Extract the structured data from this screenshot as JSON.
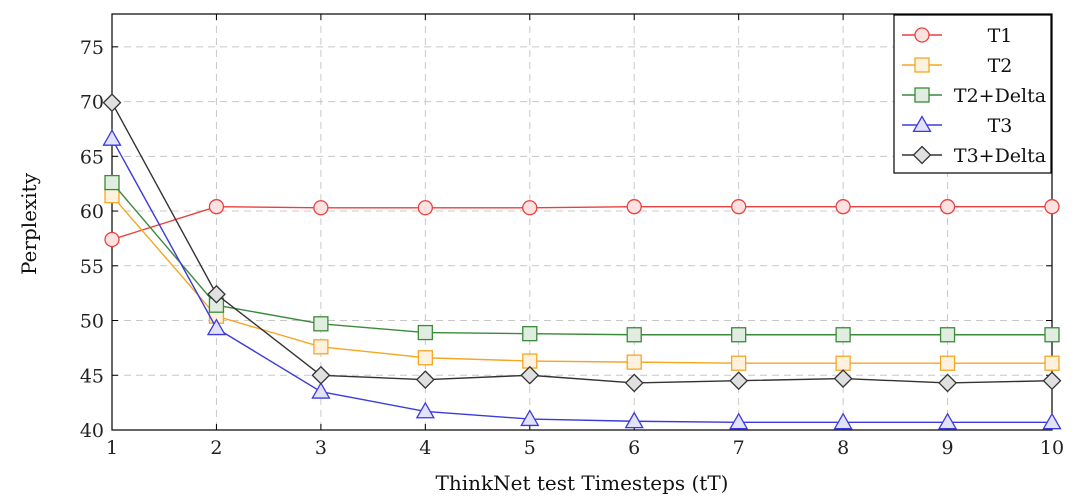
{
  "chart_data": {
    "type": "line",
    "title": "",
    "xlabel": "ThinkNet test Timesteps (tT)",
    "ylabel": "Perplexity",
    "x": [
      1,
      2,
      3,
      4,
      5,
      6,
      7,
      8,
      9,
      10
    ],
    "xlim": [
      1,
      10
    ],
    "ylim": [
      40,
      78
    ],
    "yticks": [
      40,
      45,
      50,
      55,
      60,
      65,
      70,
      75
    ],
    "grid": true,
    "legend_position": "top-right",
    "series": [
      {
        "name": "T1",
        "color": "#e8413f",
        "marker": "circle",
        "values": [
          57.4,
          60.4,
          60.3,
          60.3,
          60.3,
          60.4,
          60.4,
          60.4,
          60.4,
          60.4
        ]
      },
      {
        "name": "T2",
        "color": "#f5a623",
        "marker": "square",
        "values": [
          61.4,
          50.4,
          47.6,
          46.6,
          46.3,
          46.2,
          46.1,
          46.1,
          46.1,
          46.1
        ]
      },
      {
        "name": "T2+Delta",
        "color": "#3a8a3a",
        "marker": "square",
        "values": [
          62.6,
          51.4,
          49.7,
          48.9,
          48.8,
          48.7,
          48.7,
          48.7,
          48.7,
          48.7
        ]
      },
      {
        "name": "T3",
        "color": "#3b3bdc",
        "marker": "triangle",
        "values": [
          66.6,
          49.3,
          43.5,
          41.7,
          41.0,
          40.8,
          40.7,
          40.7,
          40.7,
          40.7
        ]
      },
      {
        "name": "T3+Delta",
        "color": "#333333",
        "marker": "diamond",
        "values": [
          69.9,
          52.4,
          45.0,
          44.6,
          45.0,
          44.3,
          44.5,
          44.7,
          44.3,
          44.5
        ]
      }
    ]
  }
}
